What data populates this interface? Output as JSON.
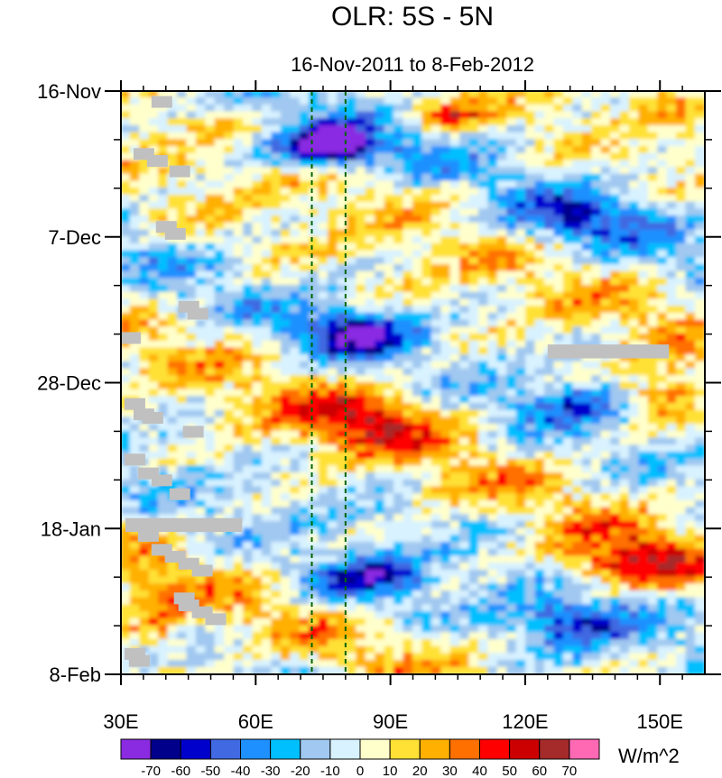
{
  "chart_data": {
    "type": "heatmap",
    "title": "OLR: 5S - 5N",
    "subtitle": "16-Nov-2011 to 8-Feb-2012",
    "x_range": [
      30,
      160
    ],
    "x_unit": "degrees East longitude",
    "x_ticks": [
      {
        "value": 30,
        "label": "30E"
      },
      {
        "value": 60,
        "label": "60E"
      },
      {
        "value": 90,
        "label": "90E"
      },
      {
        "value": 120,
        "label": "120E"
      },
      {
        "value": 150,
        "label": "150E"
      }
    ],
    "y_range_days": [
      0,
      84
    ],
    "y_ticks": [
      {
        "day": 0,
        "label": "16-Nov"
      },
      {
        "day": 21,
        "label": "7-Dec"
      },
      {
        "day": 42,
        "label": "28-Dec"
      },
      {
        "day": 63,
        "label": "18-Jan"
      },
      {
        "day": 84,
        "label": "8-Feb"
      }
    ],
    "reference_lines_lon": [
      72.5,
      80
    ],
    "colorbar": {
      "unit": "W/m^2",
      "levels": [
        -70,
        -60,
        -50,
        -40,
        -30,
        -20,
        -10,
        0,
        10,
        20,
        30,
        40,
        50,
        60,
        70
      ],
      "level_labels": [
        "-70",
        "-60",
        "-50",
        "-40",
        "-30",
        "-20",
        "-10",
        "0",
        "10",
        "20",
        "30",
        "40",
        "50",
        "60",
        "70"
      ],
      "colors": [
        "#8a2be2",
        "#00008b",
        "#0000cd",
        "#4169e1",
        "#1e90ff",
        "#00bfff",
        "#a0c8f0",
        "#d8f2ff",
        "#ffffcc",
        "#ffe135",
        "#ffb000",
        "#ff7000",
        "#ff0000",
        "#cc0000",
        "#a52a2a",
        "#ff69b4"
      ]
    },
    "anomaly_features": [
      {
        "lon": [
          60,
          90
        ],
        "day": [
          6,
          11
        ],
        "value": -65
      },
      {
        "lon": [
          73,
          82
        ],
        "day": [
          5,
          9
        ],
        "value": -72
      },
      {
        "lon": [
          95,
          110
        ],
        "day": [
          2,
          5
        ],
        "value": 45
      },
      {
        "lon": [
          115,
          150
        ],
        "day": [
          15,
          22
        ],
        "value": -40
      },
      {
        "lon": [
          70,
          95
        ],
        "day": [
          32,
          38
        ],
        "value": -60
      },
      {
        "lon": [
          65,
          105
        ],
        "day": [
          43,
          52
        ],
        "value": 40
      },
      {
        "lon": [
          118,
          145
        ],
        "day": [
          42,
          48
        ],
        "value": -40
      },
      {
        "lon": [
          140,
          160
        ],
        "day": [
          40,
          48
        ],
        "value": 40
      },
      {
        "lon": [
          70,
          100
        ],
        "day": [
          67,
          74
        ],
        "value": -45
      },
      {
        "lon": [
          125,
          160
        ],
        "day": [
          64,
          72
        ],
        "value": 45
      },
      {
        "lon": [
          115,
          145
        ],
        "day": [
          73,
          80
        ],
        "value": -45
      },
      {
        "lon": [
          30,
          45
        ],
        "day": [
          70,
          84
        ],
        "value": 30
      }
    ],
    "missing_data": [
      {
        "lon": [
          125,
          152
        ],
        "day": [
          36.5,
          38.5
        ]
      },
      {
        "lon": [
          31,
          57
        ],
        "day": [
          61.5,
          63.5
        ]
      }
    ]
  }
}
